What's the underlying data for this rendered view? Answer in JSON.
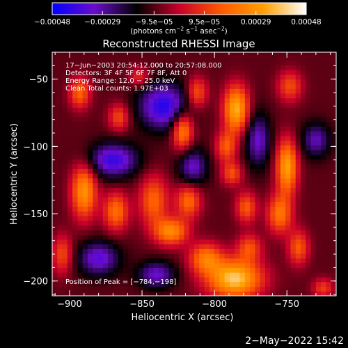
{
  "chart_data": {
    "type": "heatmap",
    "title": "Reconstructed RHESSI Image",
    "xlabel": "Heliocentric X (arcsec)",
    "ylabel": "Heliocentric Y (arcsec)",
    "xlim": [
      -912,
      -716
    ],
    "ylim": [
      -211,
      -30
    ],
    "x_ticks": [
      -900,
      -850,
      -800,
      -750
    ],
    "y_ticks": [
      -50,
      -100,
      -150,
      -200
    ],
    "x_tick_labels": [
      "−900",
      "−850",
      "−800",
      "−750"
    ],
    "y_tick_labels": [
      "−50",
      "−100",
      "−150",
      "−200"
    ],
    "colorbar": {
      "ticks": [
        -0.00048,
        -0.00029,
        -9.5e-05,
        9.5e-05,
        0.00029,
        0.00048
      ],
      "tick_labels": [
        "−0.00048",
        "−0.00029",
        "−9.5e−05",
        "9.5e−05",
        "0.00029",
        "0.00048"
      ],
      "range": [
        -0.00048,
        0.00048
      ],
      "units_parts": [
        "(photons cm",
        "−2",
        " s",
        "−1",
        " asec",
        "−2",
        ")"
      ],
      "colors": [
        "#0000ff",
        "#6a0dcc",
        "#000000",
        "#c8002a",
        "#ff5a00",
        "#ffa000",
        "#ffffff"
      ]
    },
    "annotations": [
      "17−Jun−2003 20:54:12.000 to 20:57:08.000",
      "Detectors: 3F 4F 5F 6F 7F 8F, Att 0",
      "Energy Range: 12.0 − 25.0 keV",
      "Clean    Total counts: 1.97E+03",
      "Position of Peak = [−784,−198]"
    ],
    "peak": [
      -784,
      -198
    ],
    "sources": [
      {
        "x": -786,
        "y": -198,
        "sx": 13,
        "sy": 10,
        "amp": 1.0
      },
      {
        "x": -806,
        "y": -183,
        "sx": 8,
        "sy": 8,
        "amp": 0.62
      },
      {
        "x": -776,
        "y": -175,
        "sx": 6,
        "sy": 7,
        "amp": 0.45
      },
      {
        "x": -890,
        "y": -133,
        "sx": 6,
        "sy": 14,
        "amp": 0.78
      },
      {
        "x": -868,
        "y": -148,
        "sx": 6,
        "sy": 10,
        "amp": 0.6
      },
      {
        "x": -842,
        "y": -140,
        "sx": 7,
        "sy": 13,
        "amp": 0.55
      },
      {
        "x": -830,
        "y": -163,
        "sx": 8,
        "sy": 7,
        "amp": 0.72
      },
      {
        "x": -818,
        "y": -140,
        "sx": 6,
        "sy": 9,
        "amp": 0.58
      },
      {
        "x": -822,
        "y": -88,
        "sx": 5,
        "sy": 10,
        "amp": 0.72
      },
      {
        "x": -812,
        "y": -60,
        "sx": 5,
        "sy": 8,
        "amp": 0.5
      },
      {
        "x": -785,
        "y": -72,
        "sx": 6,
        "sy": 12,
        "amp": 0.9
      },
      {
        "x": -792,
        "y": -100,
        "sx": 5,
        "sy": 8,
        "amp": 0.5
      },
      {
        "x": -788,
        "y": -120,
        "sx": 5,
        "sy": 6,
        "amp": 0.46
      },
      {
        "x": -778,
        "y": -145,
        "sx": 5,
        "sy": 8,
        "amp": 0.5
      },
      {
        "x": -750,
        "y": -115,
        "sx": 5,
        "sy": 14,
        "amp": 0.85
      },
      {
        "x": -755,
        "y": -150,
        "sx": 6,
        "sy": 10,
        "amp": 0.62
      },
      {
        "x": -742,
        "y": -175,
        "sx": 5,
        "sy": 9,
        "amp": 0.5
      },
      {
        "x": -748,
        "y": -55,
        "sx": 6,
        "sy": 8,
        "amp": 0.45
      },
      {
        "x": -893,
        "y": -60,
        "sx": 5,
        "sy": 8,
        "amp": 0.55
      },
      {
        "x": -866,
        "y": -78,
        "sx": 5,
        "sy": 7,
        "amp": 0.45
      },
      {
        "x": -905,
        "y": -180,
        "sx": 5,
        "sy": 10,
        "amp": 0.45
      },
      {
        "x": -852,
        "y": -48,
        "sx": 5,
        "sy": 5,
        "amp": 0.35
      },
      {
        "x": -725,
        "y": -205,
        "sx": 5,
        "sy": 5,
        "amp": 0.4
      },
      {
        "x": -870,
        "y": -110,
        "sx": 12,
        "sy": 9,
        "amp": -0.65
      },
      {
        "x": -835,
        "y": -70,
        "sx": 12,
        "sy": 12,
        "amp": -0.7
      },
      {
        "x": -815,
        "y": -115,
        "sx": 7,
        "sy": 10,
        "amp": -0.5
      },
      {
        "x": -880,
        "y": -183,
        "sx": 10,
        "sy": 9,
        "amp": -0.55
      },
      {
        "x": -770,
        "y": -95,
        "sx": 6,
        "sy": 14,
        "amp": -0.5
      },
      {
        "x": -730,
        "y": -95,
        "sx": 7,
        "sy": 9,
        "amp": -0.45
      },
      {
        "x": -840,
        "y": -195,
        "sx": 9,
        "sy": 7,
        "amp": -0.5
      }
    ]
  },
  "footer": {
    "timestamp": "2−May−2022 15:42"
  }
}
